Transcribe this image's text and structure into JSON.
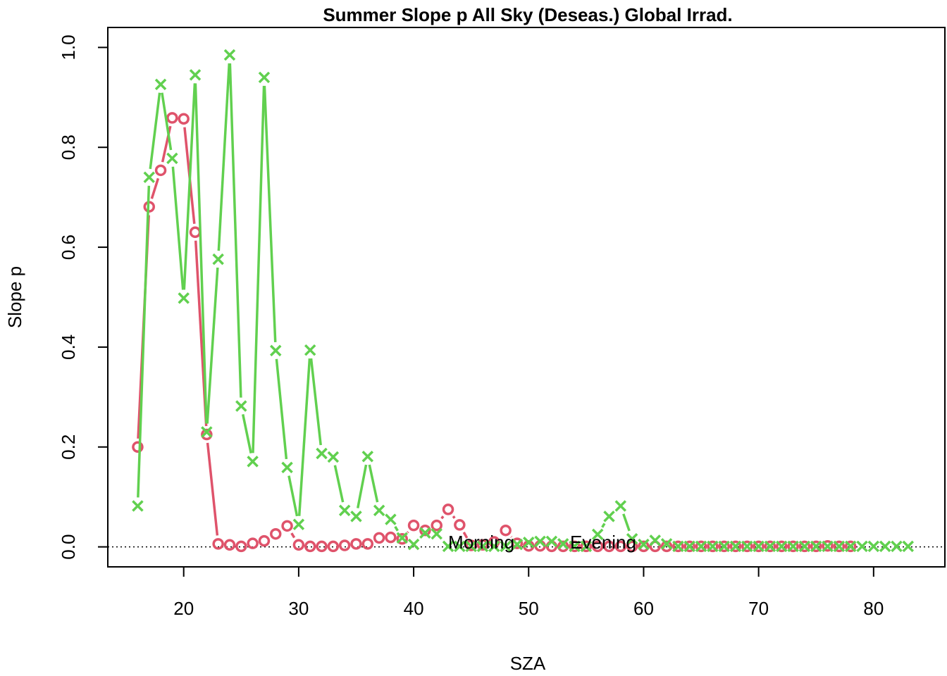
{
  "chart_data": {
    "type": "line",
    "title": "Summer Slope p All Sky (Deseas.) Global Irrad.",
    "xlabel": "SZA",
    "ylabel": "Slope p",
    "xlim": [
      13.4,
      86.2
    ],
    "ylim": [
      -0.04,
      1.04
    ],
    "x_ticks": [
      20,
      30,
      40,
      50,
      60,
      70,
      80
    ],
    "y_ticks": [
      0.0,
      0.2,
      0.4,
      0.6,
      0.8,
      1.0
    ],
    "y_tick_labels": [
      "0.0",
      "0.2",
      "0.4",
      "0.6",
      "0.8",
      "1.0"
    ],
    "reference_line": {
      "y": 0,
      "style": "dotted"
    },
    "legend": {
      "placement": "bottom-center",
      "labels": [
        "Morning",
        "Evening"
      ]
    },
    "series": [
      {
        "name": "Morning",
        "marker": "circle",
        "color": "#DF536B",
        "x": [
          16,
          17,
          18,
          19,
          20,
          21,
          22,
          23,
          24,
          25,
          26,
          27,
          28,
          29,
          30,
          31,
          32,
          33,
          34,
          35,
          36,
          37,
          38,
          39,
          40,
          41,
          42,
          43,
          44,
          45,
          46,
          47,
          48,
          49,
          50,
          51,
          52,
          53,
          54,
          55,
          56,
          57,
          58,
          59,
          60,
          61,
          62,
          63,
          64,
          65,
          66,
          67,
          68,
          69,
          70,
          71,
          72,
          73,
          74,
          75,
          76,
          77,
          78
        ],
        "values": [
          0.2,
          0.681,
          0.754,
          0.859,
          0.857,
          0.63,
          0.225,
          0.006,
          0.004,
          0.001,
          0.007,
          0.012,
          0.026,
          0.042,
          0.004,
          0.001,
          0.001,
          0.001,
          0.003,
          0.006,
          0.006,
          0.018,
          0.019,
          0.016,
          0.043,
          0.033,
          0.043,
          0.075,
          0.044,
          0.003,
          0.004,
          0.01,
          0.033,
          0.007,
          0.002,
          0.002,
          0.001,
          0.001,
          0.001,
          0.001,
          0.001,
          0.001,
          0.001,
          0.001,
          0.001,
          0.001,
          0.001,
          0.001,
          0.001,
          0.001,
          0.001,
          0.001,
          0.001,
          0.001,
          0.001,
          0.001,
          0.001,
          0.001,
          0.001,
          0.001,
          0.002,
          0.001,
          0.001
        ]
      },
      {
        "name": "Evening",
        "marker": "cross",
        "color": "#61D04F",
        "x": [
          16,
          17,
          18,
          19,
          20,
          21,
          22,
          23,
          24,
          25,
          26,
          27,
          28,
          29,
          30,
          31,
          32,
          33,
          34,
          35,
          36,
          37,
          38,
          39,
          40,
          41,
          42,
          43,
          44,
          45,
          46,
          47,
          48,
          49,
          50,
          51,
          52,
          53,
          54,
          55,
          56,
          57,
          58,
          59,
          60,
          61,
          62,
          63,
          64,
          65,
          66,
          67,
          68,
          69,
          70,
          71,
          72,
          73,
          74,
          75,
          76,
          77,
          78,
          79,
          80,
          81,
          82,
          83
        ],
        "values": [
          0.082,
          0.74,
          0.926,
          0.778,
          0.498,
          0.945,
          0.23,
          0.576,
          0.985,
          0.282,
          0.171,
          0.94,
          0.393,
          0.159,
          0.045,
          0.394,
          0.187,
          0.18,
          0.073,
          0.061,
          0.181,
          0.073,
          0.055,
          0.018,
          0.005,
          0.028,
          0.026,
          0.001,
          0.001,
          0.001,
          0.001,
          0.001,
          0.001,
          0.005,
          0.009,
          0.011,
          0.011,
          0.006,
          0.001,
          0.001,
          0.025,
          0.061,
          0.082,
          0.016,
          0.005,
          0.013,
          0.006,
          0.001,
          0.001,
          0.001,
          0.001,
          0.001,
          0.001,
          0.001,
          0.001,
          0.001,
          0.001,
          0.001,
          0.001,
          0.001,
          0.001,
          0.001,
          0.001,
          0.001,
          0.001,
          0.001,
          0.001,
          0.001
        ]
      }
    ]
  }
}
